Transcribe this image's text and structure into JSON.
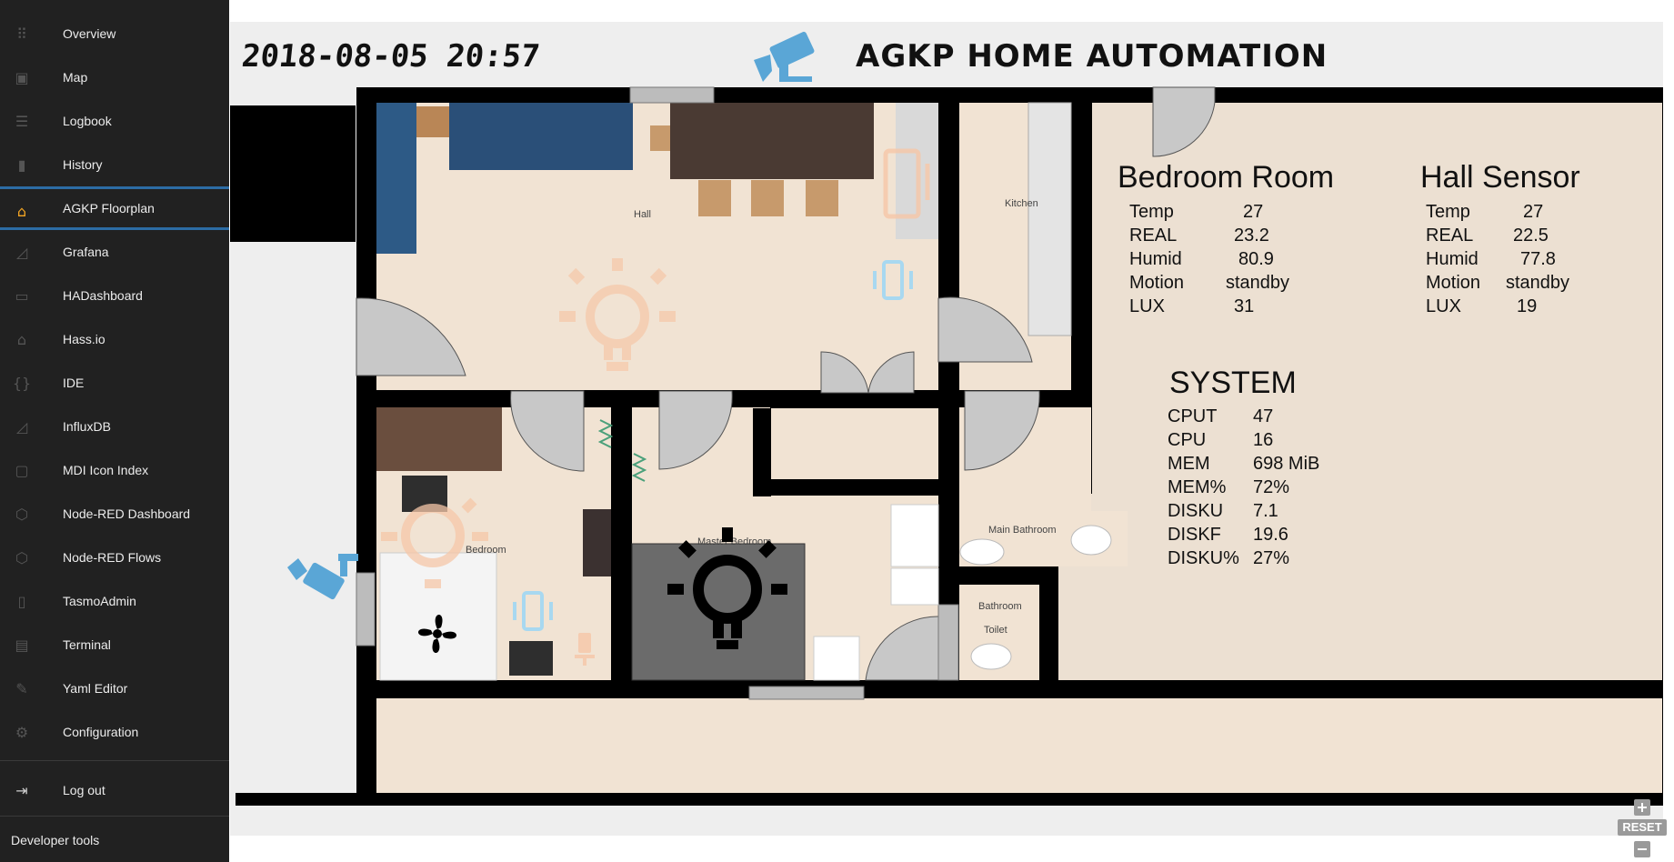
{
  "sidebar": {
    "items": [
      {
        "label": "Overview",
        "icon": "apps-icon"
      },
      {
        "label": "Map",
        "icon": "account-box-icon"
      },
      {
        "label": "Logbook",
        "icon": "format-list-icon"
      },
      {
        "label": "History",
        "icon": "chart-bar-icon"
      },
      {
        "label": "AGKP Floorplan",
        "icon": "home-icon"
      },
      {
        "label": "Grafana",
        "icon": "chart-areaspline-icon"
      },
      {
        "label": "HADashboard",
        "icon": "monitor-icon"
      },
      {
        "label": "Hass.io",
        "icon": "home-assistant-icon"
      },
      {
        "label": "IDE",
        "icon": "code-braces-icon"
      },
      {
        "label": "InfluxDB",
        "icon": "chart-areaspline-icon"
      },
      {
        "label": "MDI Icon Index",
        "icon": "vector-square-icon"
      },
      {
        "label": "Node-RED Dashboard",
        "icon": "nodejs-icon"
      },
      {
        "label": "Node-RED Flows",
        "icon": "nodejs-icon"
      },
      {
        "label": "TasmoAdmin",
        "icon": "remote-icon"
      },
      {
        "label": "Terminal",
        "icon": "console-icon"
      },
      {
        "label": "Yaml Editor",
        "icon": "wrench-icon"
      },
      {
        "label": "Configuration",
        "icon": "settings-icon"
      }
    ],
    "logout_label": "Log out",
    "dev_tools_label": "Developer tools",
    "active_index": 4,
    "active_color": "#f5a623",
    "active_border_color": "#2c6ca4"
  },
  "header": {
    "datetime": "2018-08-05 20:57",
    "title": "AGKP HOME AUTOMATION"
  },
  "rooms": {
    "hall": "Hall",
    "kitchen": "Kitchen",
    "bedroom": "Bedroom",
    "master_bedroom": "Master Bedroom",
    "main_bathroom": "Main Bathroom",
    "bathroom": "Bathroom",
    "toilet": "Toilet"
  },
  "bedroom_panel": {
    "title": "Bedroom Room",
    "rows": [
      {
        "label": "Temp",
        "value": "27"
      },
      {
        "label": "REAL",
        "value": "23.2"
      },
      {
        "label": "Humid",
        "value": "80.9"
      },
      {
        "label": "Motion",
        "value": "standby"
      },
      {
        "label": "LUX",
        "value": "31"
      }
    ]
  },
  "hall_panel": {
    "title": "Hall Sensor",
    "rows": [
      {
        "label": "Temp",
        "value": "27"
      },
      {
        "label": "REAL",
        "value": "22.5"
      },
      {
        "label": "Humid",
        "value": "77.8"
      },
      {
        "label": "Motion",
        "value": "standby"
      },
      {
        "label": "LUX",
        "value": "19"
      }
    ]
  },
  "system_panel": {
    "title": "SYSTEM",
    "rows": [
      {
        "label": "CPUT",
        "value": "47"
      },
      {
        "label": "CPU",
        "value": "16"
      },
      {
        "label": "MEM",
        "value": "698 MiB"
      },
      {
        "label": "MEM%",
        "value": "72%"
      },
      {
        "label": "DISKU",
        "value": "7.1"
      },
      {
        "label": "DISKF",
        "value": "19.6"
      },
      {
        "label": "DISKU%",
        "value": "27%"
      }
    ]
  },
  "controls": {
    "zoom_in": "+",
    "reset": "RESET",
    "zoom_out": "−"
  },
  "colors": {
    "sidebar_bg": "#212121",
    "floor": "#f1e3d3",
    "wall": "#000000",
    "light_on": "#f6c7a8",
    "light_off": "#000000",
    "camera": "#5aa6d6",
    "motion_sensor": "#a8d8f0"
  }
}
